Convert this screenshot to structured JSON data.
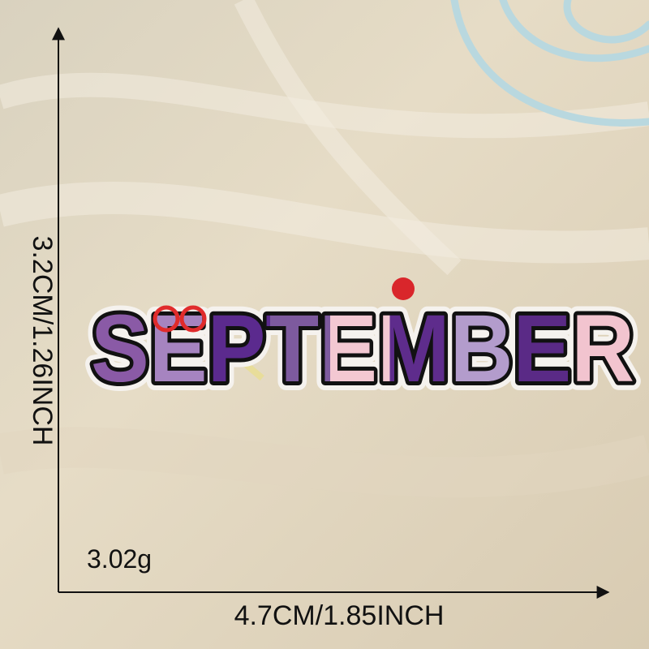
{
  "dimensions": {
    "height": "3.2CM/1.26INCH",
    "width": "4.7CM/1.85INCH"
  },
  "weight": "3.02g",
  "patch": {
    "text": "SEPTEMBER"
  }
}
